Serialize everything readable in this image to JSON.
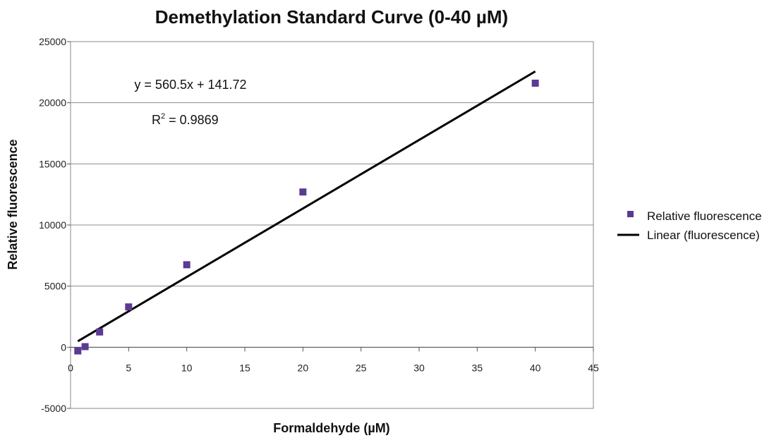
{
  "chart_data": {
    "type": "scatter",
    "title": "Demethylation Standard Curve (0-40 µM)",
    "xlabel": "Formaldehyde (µM)",
    "ylabel": "Relative fluorescence",
    "xlim": [
      0,
      45
    ],
    "ylim": [
      -5000,
      25000
    ],
    "xticks": [
      0,
      5,
      10,
      15,
      20,
      25,
      30,
      35,
      40,
      45
    ],
    "yticks": [
      -5000,
      0,
      5000,
      10000,
      15000,
      20000,
      25000
    ],
    "grid": {
      "horizontal": true,
      "vertical": false
    },
    "series": [
      {
        "name": "Relative fluorescence",
        "kind": "scatter",
        "color": "#5b3a93",
        "points": [
          {
            "x": 0.625,
            "y": -300
          },
          {
            "x": 1.25,
            "y": 50
          },
          {
            "x": 2.5,
            "y": 1250
          },
          {
            "x": 5,
            "y": 3300
          },
          {
            "x": 10,
            "y": 6750
          },
          {
            "x": 20,
            "y": 12700
          },
          {
            "x": 40,
            "y": 21600
          }
        ]
      },
      {
        "name": "Linear (fluorescence)",
        "kind": "line",
        "color": "#000000",
        "slope": 560.5,
        "intercept": 141.72,
        "x_range": [
          0.625,
          40
        ]
      }
    ],
    "annotations": {
      "equation": "y = 560.5x + 141.72",
      "r_squared_label": "R",
      "r_squared_superscript": "2",
      "r_squared_value": " = 0.9869"
    },
    "legend": {
      "position": "right",
      "entries": [
        {
          "label": "Relative fluorescence",
          "symbol": "square",
          "color": "#5b3a93"
        },
        {
          "label": "Linear (fluorescence)",
          "symbol": "line",
          "color": "#000000"
        }
      ]
    }
  }
}
